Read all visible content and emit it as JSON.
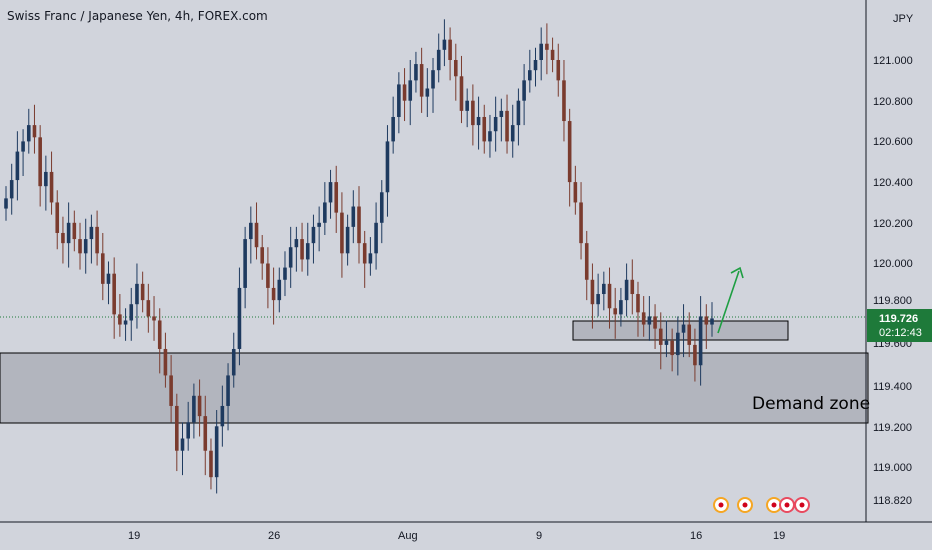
{
  "header": {
    "title": "Swiss Franc / Japanese Yen, 4h, FOREX.com"
  },
  "colors": {
    "background": "#d1d4dc",
    "bull": "#1e3a5f",
    "bear": "#7a3b2e",
    "zone_fill": "#b2b5be",
    "arrow": "#1e9e42",
    "price_tag": "#1e7a3a"
  },
  "chart_data": {
    "type": "candlestick",
    "symbol": "CHFJPY",
    "timeframe": "4h",
    "currency": "JPY",
    "ylim": [
      118.7,
      121.2
    ],
    "y_ticks": [
      "121.000",
      "120.800",
      "120.600",
      "120.400",
      "120.200",
      "120.000",
      "119.800",
      "119.600",
      "119.400",
      "119.200",
      "119.000",
      "118.820"
    ],
    "y_tick_values": [
      121.0,
      120.8,
      120.6,
      120.4,
      120.2,
      120.0,
      119.8,
      119.6,
      119.4,
      119.2,
      119.0,
      118.82
    ],
    "x_ticks": [
      "19",
      "26",
      "Aug",
      "9",
      "16",
      "19"
    ],
    "current_price": "119.726",
    "countdown": "02:12:43",
    "demand_zone": {
      "label": "Demand zone",
      "low": 119.2,
      "high": 119.55
    },
    "small_zone": {
      "low": 119.61,
      "high": 119.71
    },
    "closes": [
      120.32,
      120.41,
      120.55,
      120.6,
      120.68,
      120.62,
      120.38,
      120.45,
      120.3,
      120.15,
      120.1,
      120.2,
      120.12,
      120.05,
      120.12,
      120.18,
      120.05,
      119.9,
      119.95,
      119.75,
      119.7,
      119.72,
      119.8,
      119.9,
      119.82,
      119.74,
      119.72,
      119.58,
      119.45,
      119.3,
      119.08,
      119.14,
      119.22,
      119.35,
      119.25,
      119.08,
      118.95,
      119.2,
      119.3,
      119.45,
      119.58,
      119.88,
      120.12,
      120.2,
      120.08,
      120.0,
      119.88,
      119.82,
      119.92,
      119.98,
      120.08,
      120.12,
      120.02,
      120.1,
      120.18,
      120.2,
      120.3,
      120.4,
      120.25,
      120.05,
      120.18,
      120.28,
      120.1,
      120.0,
      120.05,
      120.2,
      120.35,
      120.6,
      120.72,
      120.88,
      120.8,
      120.9,
      120.98,
      120.82,
      120.86,
      120.95,
      121.05,
      121.1,
      121.0,
      120.92,
      120.75,
      120.8,
      120.68,
      120.72,
      120.6,
      120.65,
      120.72,
      120.75,
      120.6,
      120.68,
      120.8,
      120.9,
      120.95,
      121.0,
      121.08,
      121.05,
      121.0,
      120.9,
      120.7,
      120.4,
      120.3,
      120.1,
      119.92,
      119.8,
      119.85,
      119.9,
      119.78,
      119.75,
      119.82,
      119.92,
      119.85,
      119.76,
      119.7,
      119.74,
      119.68,
      119.6,
      119.62,
      119.55,
      119.66,
      119.7,
      119.6,
      119.5,
      119.74,
      119.7,
      119.73
    ]
  }
}
